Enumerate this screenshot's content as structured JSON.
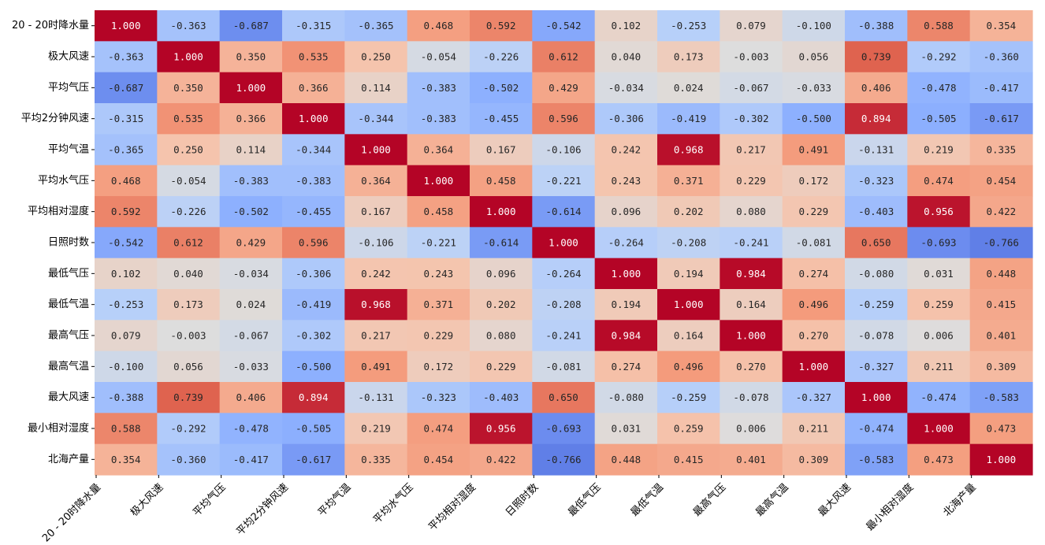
{
  "chart_data": {
    "type": "heatmap",
    "title": "",
    "xlabel": "",
    "ylabel": "",
    "colormap": "coolwarm",
    "value_range": [
      -1,
      1
    ],
    "colorbar": false,
    "annotations_format": "0.000",
    "labels": [
      "20 - 20时降水量",
      "极大风速",
      "平均气压",
      "平均2分钟风速",
      "平均气温",
      "平均水气压",
      "平均相对湿度",
      "日照时数",
      "最低气压",
      "最低气温",
      "最高气压",
      "最高气温",
      "最大风速",
      "最小相对湿度",
      "北海产量"
    ],
    "display_values": [
      [
        "1.000",
        "-0.363",
        "-0.687",
        "-0.315",
        "-0.365",
        "0.468",
        "0.592",
        "-0.542",
        "0.102",
        "-0.253",
        "0.079",
        "-0.100",
        "-0.388",
        "0.588",
        "0.354"
      ],
      [
        "-0.363",
        "1.000",
        "0.350",
        "0.535",
        "0.250",
        "-0.054",
        "-0.226",
        "0.612",
        "0.040",
        "0.173",
        "-0.003",
        "0.056",
        "0.739",
        "-0.292",
        "-0.360"
      ],
      [
        "-0.687",
        "0.350",
        "1.000",
        "0.366",
        "0.114",
        "-0.383",
        "-0.502",
        "0.429",
        "-0.034",
        "0.024",
        "-0.067",
        "-0.033",
        "0.406",
        "-0.478",
        "-0.417"
      ],
      [
        "-0.315",
        "0.535",
        "0.366",
        "1.000",
        "-0.344",
        "-0.383",
        "-0.455",
        "0.596",
        "-0.306",
        "-0.419",
        "-0.302",
        "-0.500",
        "0.894",
        "-0.505",
        "-0.617"
      ],
      [
        "-0.365",
        "0.250",
        "0.114",
        "-0.344",
        "1.000",
        "0.364",
        "0.167",
        "-0.106",
        "0.242",
        "0.968",
        "0.217",
        "0.491",
        "-0.131",
        "0.219",
        "0.335"
      ],
      [
        "0.468",
        "-0.054",
        "-0.383",
        "-0.383",
        "0.364",
        "1.000",
        "0.458",
        "-0.221",
        "0.243",
        "0.371",
        "0.229",
        "0.172",
        "-0.323",
        "0.474",
        "0.454"
      ],
      [
        "0.592",
        "-0.226",
        "-0.502",
        "-0.455",
        "0.167",
        "0.458",
        "1.000",
        "-0.614",
        "0.096",
        "0.202",
        "0.080",
        "0.229",
        "-0.403",
        "0.956",
        "0.422"
      ],
      [
        "-0.542",
        "0.612",
        "0.429",
        "0.596",
        "-0.106",
        "-0.221",
        "-0.614",
        "1.000",
        "-0.264",
        "-0.208",
        "-0.241",
        "-0.081",
        "0.650",
        "-0.693",
        "-0.766"
      ],
      [
        "0.102",
        "0.040",
        "-0.034",
        "-0.306",
        "0.242",
        "0.243",
        "0.096",
        "-0.264",
        "1.000",
        "0.194",
        "0.984",
        "0.274",
        "-0.080",
        "0.031",
        "0.448"
      ],
      [
        "-0.253",
        "0.173",
        "0.024",
        "-0.419",
        "0.968",
        "0.371",
        "0.202",
        "-0.208",
        "0.194",
        "1.000",
        "0.164",
        "0.496",
        "-0.259",
        "0.259",
        "0.415"
      ],
      [
        "0.079",
        "-0.003",
        "-0.067",
        "-0.302",
        "0.217",
        "0.229",
        "0.080",
        "-0.241",
        "0.984",
        "0.164",
        "1.000",
        "0.270",
        "-0.078",
        "0.006",
        "0.401"
      ],
      [
        "-0.100",
        "0.056",
        "-0.033",
        "-0.500",
        "0.491",
        "0.172",
        "0.229",
        "-0.081",
        "0.274",
        "0.496",
        "0.270",
        "1.000",
        "-0.327",
        "0.211",
        "0.309"
      ],
      [
        "-0.388",
        "0.739",
        "0.406",
        "0.894",
        "-0.131",
        "-0.323",
        "-0.403",
        "0.650",
        "-0.080",
        "-0.259",
        "-0.078",
        "-0.327",
        "1.000",
        "-0.474",
        "-0.583"
      ],
      [
        "0.588",
        "-0.292",
        "-0.478",
        "-0.505",
        "0.219",
        "0.474",
        "0.956",
        "-0.693",
        "0.031",
        "0.259",
        "0.006",
        "0.211",
        "-0.474",
        "1.000",
        "0.473"
      ],
      [
        "0.354",
        "-0.360",
        "-0.417",
        "-0.617",
        "0.335",
        "0.454",
        "0.422",
        "-0.766",
        "0.448",
        "0.415",
        "0.401",
        "0.309",
        "-0.583",
        "0.473",
        "1.000"
      ]
    ]
  }
}
